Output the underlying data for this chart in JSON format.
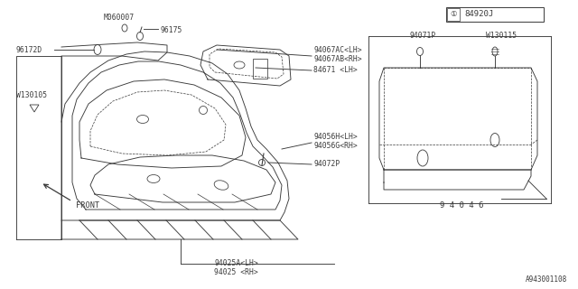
{
  "bg_color": "#ffffff",
  "line_color": "#3a3a3a",
  "text_color": "#3a3a3a",
  "bottom_label": "A943001108",
  "labels": {
    "94025_rh": "94025 <RH>",
    "94025a_lh": "94025A<LH>",
    "94046": "9 4 0 4 6",
    "94072p": "94072P",
    "94056g_rh": "94056G<RH>",
    "94056h_lh": "94056H<LH>",
    "84671_lh": "84671 <LH>",
    "94067ab_rh": "94067AB<RH>",
    "94067ac_lh": "94067AC<LH>",
    "96172d": "96172D",
    "96175": "96175",
    "m060007": "M060007",
    "w130105": "W130105",
    "94071p": "94071P",
    "w130115": "W130115",
    "front": "FRONT"
  },
  "figsize": [
    6.4,
    3.2
  ],
  "dpi": 100
}
